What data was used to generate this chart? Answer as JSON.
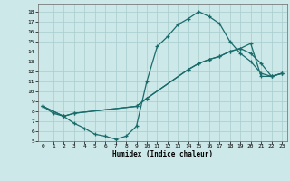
{
  "title": "",
  "xlabel": "Humidex (Indice chaleur)",
  "bg_color": "#cde8e8",
  "grid_color": "#a8cccc",
  "line_color": "#1a6b6b",
  "xlim": [
    -0.5,
    23.5
  ],
  "ylim": [
    5,
    18.8
  ],
  "yticks": [
    5,
    6,
    7,
    8,
    9,
    10,
    11,
    12,
    13,
    14,
    15,
    16,
    17,
    18
  ],
  "xticks": [
    0,
    1,
    2,
    3,
    4,
    5,
    6,
    7,
    8,
    9,
    10,
    11,
    12,
    13,
    14,
    15,
    16,
    17,
    18,
    19,
    20,
    21,
    22,
    23
  ],
  "line1_x": [
    0,
    1,
    2,
    3,
    4,
    5,
    6,
    7,
    8,
    9,
    10,
    11,
    12,
    13,
    14,
    15,
    16,
    17,
    18,
    19,
    20,
    21,
    22,
    23
  ],
  "line1_y": [
    8.5,
    7.8,
    7.5,
    6.8,
    6.3,
    5.7,
    5.5,
    5.2,
    5.5,
    6.5,
    11.0,
    14.5,
    15.5,
    16.7,
    17.3,
    18.0,
    17.5,
    16.8,
    15.0,
    13.8,
    13.0,
    11.8,
    11.5,
    11.8
  ],
  "line2_x": [
    0,
    2,
    3,
    9,
    10,
    14,
    15,
    16,
    17,
    18,
    19,
    20,
    21,
    22,
    23
  ],
  "line2_y": [
    8.5,
    7.5,
    7.8,
    8.5,
    9.3,
    12.2,
    12.8,
    13.2,
    13.5,
    14.0,
    14.3,
    13.8,
    12.8,
    11.5,
    11.8
  ],
  "line3_x": [
    0,
    2,
    3,
    9,
    10,
    14,
    15,
    16,
    17,
    18,
    19,
    20,
    21,
    22,
    23
  ],
  "line3_y": [
    8.5,
    7.5,
    7.8,
    8.5,
    9.3,
    12.2,
    12.8,
    13.2,
    13.5,
    14.0,
    14.3,
    14.8,
    11.5,
    11.5,
    11.8
  ]
}
